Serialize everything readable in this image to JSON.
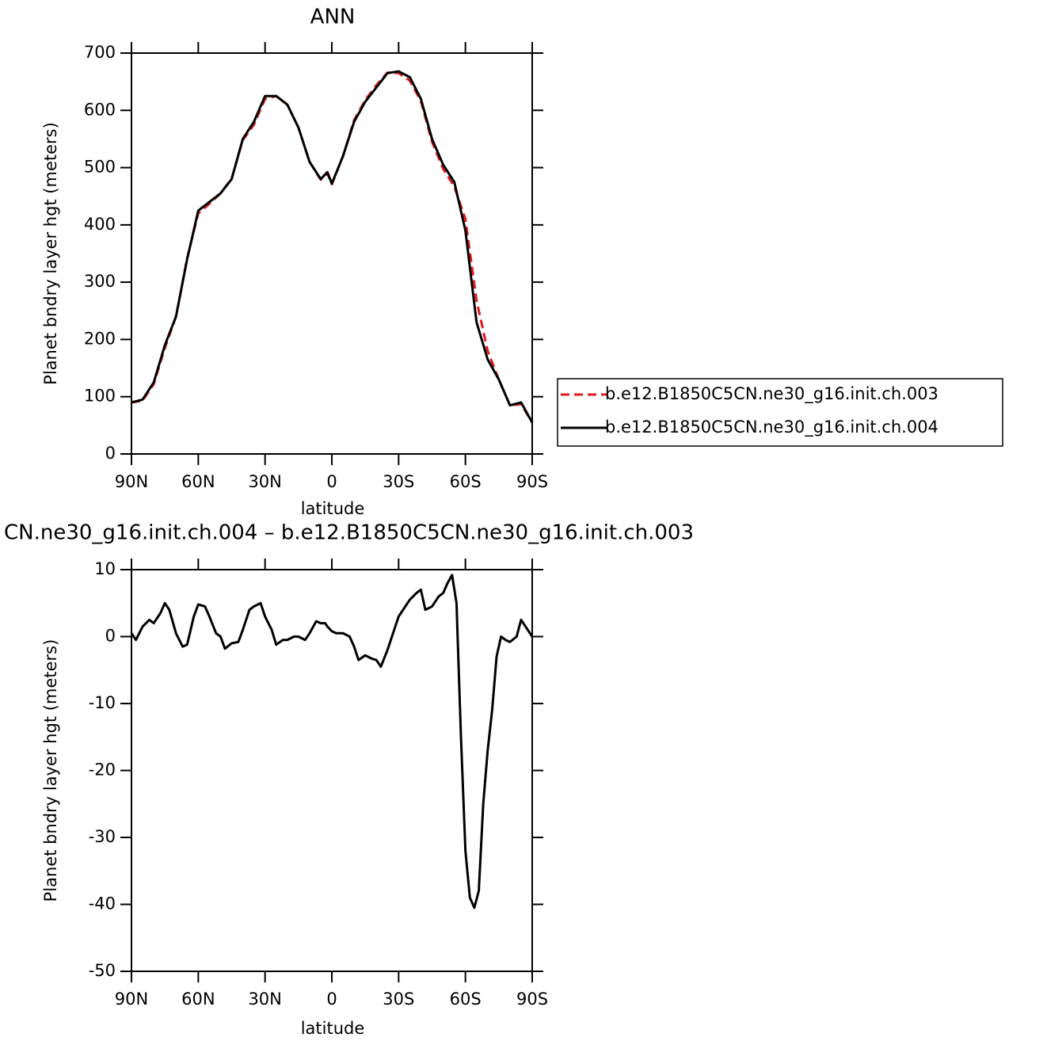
{
  "chart_data": [
    {
      "type": "line",
      "title": "ANN",
      "xlabel": "latitude",
      "ylabel": "Planet bndry layer hgt (meters)",
      "x": [
        90,
        85,
        80,
        75,
        70,
        65,
        60,
        55,
        50,
        45,
        40,
        35,
        30,
        25,
        20,
        15,
        10,
        5,
        2,
        0,
        -5,
        -10,
        -15,
        -20,
        -25,
        -30,
        -35,
        -40,
        -45,
        -50,
        -55,
        -60,
        -65,
        -70,
        -75,
        -80,
        -85,
        -90
      ],
      "series": [
        {
          "name": "b.e12.B1850C5CN.ne30_g16.init.ch.003",
          "color": "#e31a1c",
          "style": "dashed",
          "values": [
            90,
            93,
            122,
            185,
            240,
            342,
            420,
            437,
            455,
            481,
            548,
            575,
            620,
            625,
            610,
            570,
            510,
            479,
            490,
            471,
            520,
            583,
            618,
            644,
            666,
            665,
            652,
            616,
            545,
            498,
            467,
            410,
            268,
            180,
            130,
            85,
            87,
            55
          ]
        },
        {
          "name": "b.e12.B1850C5CN.ne30_g16.init.ch.004",
          "color": "#000000",
          "style": "solid",
          "values": [
            90,
            95,
            125,
            190,
            240,
            340,
            425,
            440,
            455,
            480,
            550,
            580,
            625,
            625,
            610,
            570,
            510,
            480,
            492,
            472,
            520,
            580,
            615,
            640,
            665,
            668,
            658,
            620,
            550,
            505,
            475,
            390,
            230,
            165,
            130,
            85,
            90,
            55
          ]
        }
      ],
      "xlim": [
        90,
        -90
      ],
      "xticks": [
        {
          "value": 90,
          "label": "90N"
        },
        {
          "value": 60,
          "label": "60N"
        },
        {
          "value": 30,
          "label": "30N"
        },
        0,
        {
          "value": -30,
          "label": "30S"
        },
        {
          "value": -60,
          "label": "60S"
        },
        {
          "value": -90,
          "label": "90S"
        }
      ],
      "ylim": [
        0,
        700
      ],
      "yticks": [
        0,
        100,
        200,
        300,
        400,
        500,
        600,
        700
      ],
      "legend": "right"
    },
    {
      "type": "line",
      "title": "CN.ne30_g16.init.ch.004 – b.e12.B1850C5CN.ne30_g16.init.ch.003",
      "xlabel": "latitude",
      "ylabel": "Planet bndry layer hgt (meters)",
      "x": [
        90,
        88,
        85,
        82,
        80,
        77,
        75,
        73,
        70,
        67,
        65,
        62,
        60,
        57,
        55,
        52,
        50,
        48,
        45,
        42,
        40,
        37,
        35,
        32,
        30,
        27,
        25,
        22,
        20,
        17,
        15,
        12,
        10,
        7,
        5,
        3,
        2,
        0,
        -2,
        -5,
        -8,
        -10,
        -12,
        -15,
        -18,
        -20,
        -22,
        -25,
        -28,
        -30,
        -33,
        -35,
        -38,
        -40,
        -42,
        -45,
        -48,
        -50,
        -52,
        -54,
        -56,
        -58,
        -60,
        -62,
        -64,
        -66,
        -68,
        -70,
        -72,
        -74,
        -76,
        -78,
        -80,
        -83,
        -85,
        -87,
        -90
      ],
      "series": [
        {
          "color": "#000000",
          "style": "solid",
          "values": [
            0.5,
            -0.5,
            1.5,
            2.5,
            2,
            3.5,
            5,
            4,
            0.5,
            -1.5,
            -1.2,
            3,
            4.8,
            4.5,
            3,
            0.5,
            0,
            -1.8,
            -1,
            -0.8,
            1,
            4,
            4.5,
            5,
            3,
            1,
            -1.2,
            -0.5,
            -0.5,
            0,
            0,
            -0.5,
            0.5,
            2.3,
            2,
            2,
            1.5,
            0.8,
            0.5,
            0.5,
            0,
            -1.5,
            -3.5,
            -2.8,
            -3.3,
            -3.5,
            -4.5,
            -2,
            1,
            3,
            4.5,
            5.5,
            6.5,
            7,
            4,
            4.5,
            6,
            6.5,
            8,
            9.2,
            5,
            -15,
            -32,
            -39,
            -40.5,
            -38,
            -25,
            -17,
            -11,
            -3,
            0,
            -0.5,
            -0.8,
            0,
            2.5,
            1.5,
            0
          ]
        }
      ],
      "xlim": [
        90,
        -90
      ],
      "xticks": [
        {
          "value": 90,
          "label": "90N"
        },
        {
          "value": 60,
          "label": "60N"
        },
        {
          "value": 30,
          "label": "30N"
        },
        0,
        {
          "value": -30,
          "label": "30S"
        },
        {
          "value": -60,
          "label": "60S"
        },
        {
          "value": -90,
          "label": "90S"
        }
      ],
      "ylim": [
        -50,
        10
      ],
      "yticks": [
        -50,
        -40,
        -30,
        -20,
        -10,
        0,
        10
      ]
    }
  ]
}
